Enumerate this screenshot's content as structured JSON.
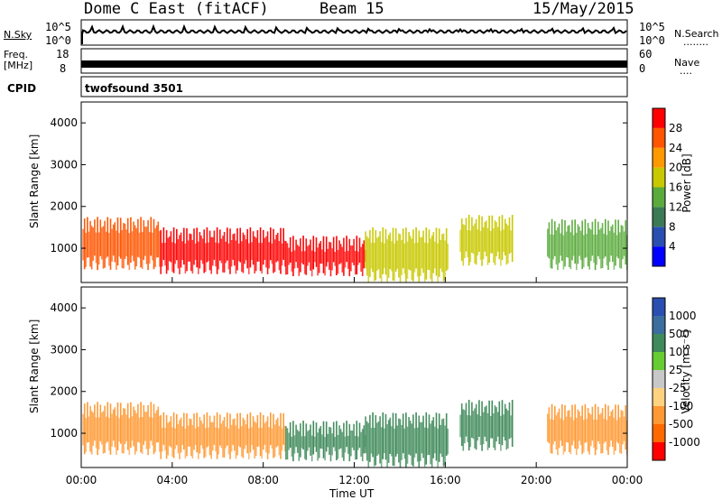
{
  "header": {
    "station": "Dome C East (fitACF)",
    "beam": "Beam 15",
    "date": "15/May/2015"
  },
  "noise_panel": {
    "left_label": "N.Sky",
    "right_label": "N.Search",
    "left_ticks": [
      "10^5",
      "10^0"
    ],
    "right_ticks": [
      "10^5",
      "10^0"
    ],
    "right_dots": "........"
  },
  "freq_panel": {
    "left_label_1": "Freq.",
    "left_label_2": "[MHz]",
    "right_label": "Nave",
    "left_ticks": [
      "18",
      "8"
    ],
    "right_ticks": [
      "60",
      "0"
    ],
    "right_dots": "...."
  },
  "cpid_panel": {
    "label": "CPID",
    "value": "twofsound 3501"
  },
  "chart_data": [
    {
      "type": "heatmap",
      "title": "Power",
      "ylabel": "Slant Range [km]",
      "ylim": [
        180,
        4500
      ],
      "yticks": [
        "1000",
        "2000",
        "3000",
        "4000"
      ],
      "xlim": [
        "00:00",
        "24:00"
      ],
      "colorbar": {
        "label": "Power [dB]",
        "ticks": [
          "4",
          "8",
          "12",
          "16",
          "20",
          "24",
          "28"
        ],
        "range": [
          0,
          32
        ],
        "colors": [
          "#0000ff",
          "#2a4fb0",
          "#3b7a55",
          "#5aab3c",
          "#c8c800",
          "#ff9900",
          "#ff5500",
          "#ff0000"
        ]
      },
      "segments": [
        {
          "start": "00:05",
          "end": "03:30",
          "range_min": 650,
          "range_max": 1750,
          "power_db": 26
        },
        {
          "start": "03:30",
          "end": "09:00",
          "range_min": 550,
          "range_max": 1500,
          "power_db": 30
        },
        {
          "start": "09:00",
          "end": "12:30",
          "range_min": 500,
          "range_max": 1300,
          "power_db": 29
        },
        {
          "start": "12:30",
          "end": "16:10",
          "range_min": 350,
          "range_max": 1500,
          "power_db": 17
        },
        {
          "start": "16:40",
          "end": "19:00",
          "range_min": 750,
          "range_max": 1800,
          "power_db": 19
        },
        {
          "start": "20:30",
          "end": "24:00",
          "range_min": 650,
          "range_max": 1700,
          "power_db": 14
        }
      ]
    },
    {
      "type": "heatmap",
      "title": "Velocity",
      "ylabel": "Slant Range [km]",
      "ylim": [
        180,
        4500
      ],
      "yticks": [
        "1000",
        "2000",
        "3000",
        "4000"
      ],
      "xlim": [
        "00:00",
        "24:00"
      ],
      "xticks": [
        "00:00",
        "04:00",
        "08:00",
        "12:00",
        "16:00",
        "20:00",
        "00:00"
      ],
      "xlabel": "Time UT",
      "colorbar": {
        "label": "Velocity [m s⁻¹]",
        "ticks": [
          "1000",
          "500",
          "100",
          "25",
          "-25",
          "-100",
          "-500",
          "-1000"
        ],
        "colors": [
          "#2a4fb0",
          "#3b6e9e",
          "#3f8a5a",
          "#66cc33",
          "#c8c8c8",
          "#ffd27f",
          "#ff9933",
          "#ff6a00",
          "#ff0000"
        ]
      },
      "segments": [
        {
          "start": "00:05",
          "end": "03:30",
          "range_min": 650,
          "range_max": 1750,
          "velocity": -200
        },
        {
          "start": "03:30",
          "end": "09:00",
          "range_min": 550,
          "range_max": 1500,
          "velocity": -350
        },
        {
          "start": "09:00",
          "end": "12:30",
          "range_min": 500,
          "range_max": 1300,
          "velocity": 150
        },
        {
          "start": "12:30",
          "end": "16:10",
          "range_min": 350,
          "range_max": 1500,
          "velocity": 300
        },
        {
          "start": "16:40",
          "end": "19:00",
          "range_min": 750,
          "range_max": 1800,
          "velocity": 250
        },
        {
          "start": "20:30",
          "end": "24:00",
          "range_min": 650,
          "range_max": 1700,
          "velocity": -150
        }
      ]
    }
  ]
}
